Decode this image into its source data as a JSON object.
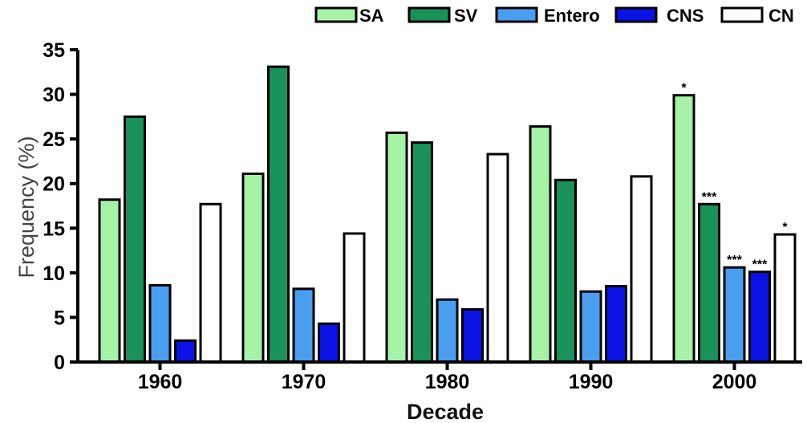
{
  "chart_data": {
    "type": "bar",
    "title": "",
    "xlabel": "Decade",
    "ylabel": "Frequency (%)",
    "ylim": [
      0,
      35
    ],
    "yticks": [
      "0",
      "5",
      "10",
      "15",
      "20",
      "25",
      "30",
      "35"
    ],
    "categories": [
      "1960",
      "1970",
      "1980",
      "1990",
      "2000"
    ],
    "grid": false,
    "legend_position": "top-right",
    "series": [
      {
        "name": "SA",
        "color": "#a6f2a6",
        "values": [
          18.2,
          21.1,
          25.7,
          26.4,
          29.9
        ],
        "annotations": [
          "",
          "",
          "",
          "",
          "*"
        ]
      },
      {
        "name": "SV",
        "color": "#18915a",
        "values": [
          27.5,
          33.1,
          24.6,
          20.4,
          17.7
        ],
        "annotations": [
          "",
          "",
          "",
          "",
          "***"
        ]
      },
      {
        "name": "Entero",
        "color": "#4a9ef0",
        "values": [
          8.6,
          8.2,
          7.0,
          7.9,
          10.6
        ],
        "annotations": [
          "",
          "",
          "",
          "",
          "***"
        ]
      },
      {
        "name": "CNS",
        "color": "#0a12e6",
        "values": [
          2.4,
          4.3,
          5.9,
          8.5,
          10.1
        ],
        "annotations": [
          "",
          "",
          "",
          "",
          "***"
        ]
      },
      {
        "name": "CN",
        "color": "#ffffff",
        "values": [
          17.7,
          14.4,
          23.3,
          20.8,
          14.3
        ],
        "annotations": [
          "",
          "",
          "",
          "",
          "*"
        ]
      }
    ]
  }
}
